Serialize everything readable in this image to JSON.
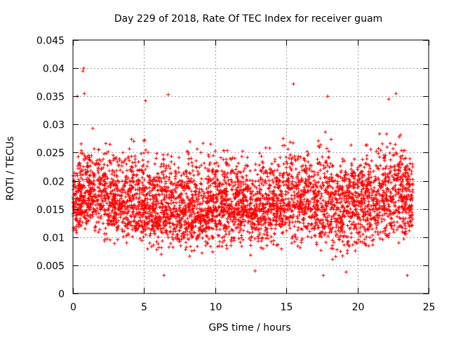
{
  "chart_data": {
    "type": "scatter",
    "title": "Day 229 of 2018, Rate Of TEC Index for receiver guam",
    "xlabel": "GPS time / hours",
    "ylabel": "ROTI / TECUs",
    "xlim": [
      0,
      25
    ],
    "ylim": [
      0,
      0.045
    ],
    "xticks": [
      0,
      5,
      10,
      15,
      20,
      25
    ],
    "yticks": [
      0,
      0.005,
      0.01,
      0.015,
      0.02,
      0.025,
      0.03,
      0.035,
      0.04,
      0.045
    ],
    "xtick_labels": [
      "0",
      "5",
      "10",
      "15",
      "20",
      "25"
    ],
    "ytick_labels": [
      "0",
      "0.005",
      "0.01",
      "0.015",
      "0.02",
      "0.025",
      "0.03",
      "0.035",
      "0.04",
      "0.045"
    ],
    "grid": true,
    "marker": "+",
    "color": "#ff0000",
    "series": [
      {
        "name": "ROTI",
        "x_range": [
          0,
          23.9
        ],
        "envelope": {
          "hours": [
            0,
            1,
            2,
            3,
            4,
            5,
            6,
            7,
            8,
            9,
            10,
            11,
            12,
            13,
            14,
            15,
            16,
            17,
            18,
            19,
            20,
            21,
            22,
            23,
            23.9
          ],
          "low": [
            0.009,
            0.008,
            0.007,
            0.007,
            0.0065,
            0.006,
            0.005,
            0.0055,
            0.006,
            0.006,
            0.0065,
            0.006,
            0.0055,
            0.0055,
            0.006,
            0.007,
            0.007,
            0.006,
            0.004,
            0.004,
            0.0045,
            0.005,
            0.0055,
            0.006,
            0.0075
          ],
          "high": [
            0.026,
            0.031,
            0.03,
            0.029,
            0.029,
            0.031,
            0.027,
            0.027,
            0.029,
            0.028,
            0.028,
            0.029,
            0.027,
            0.028,
            0.028,
            0.031,
            0.03,
            0.028,
            0.031,
            0.029,
            0.028,
            0.029,
            0.032,
            0.031,
            0.027
          ],
          "centre": [
            0.016,
            0.018,
            0.017,
            0.016,
            0.016,
            0.016,
            0.015,
            0.015,
            0.015,
            0.015,
            0.016,
            0.016,
            0.015,
            0.015,
            0.016,
            0.017,
            0.017,
            0.016,
            0.016,
            0.016,
            0.016,
            0.017,
            0.018,
            0.018,
            0.016
          ]
        },
        "outliers": [
          {
            "x": 0.7,
            "y": 0.0395
          },
          {
            "x": 0.75,
            "y": 0.04
          },
          {
            "x": 0.8,
            "y": 0.0355
          },
          {
            "x": 0.3,
            "y": 0.035
          },
          {
            "x": 6.7,
            "y": 0.0353
          },
          {
            "x": 15.5,
            "y": 0.0372
          },
          {
            "x": 17.9,
            "y": 0.035
          },
          {
            "x": 22.7,
            "y": 0.0355
          },
          {
            "x": 22.2,
            "y": 0.0345
          },
          {
            "x": 5.1,
            "y": 0.0342
          },
          {
            "x": 23.5,
            "y": 0.0032
          },
          {
            "x": 17.6,
            "y": 0.0032
          },
          {
            "x": 6.4,
            "y": 0.0032
          },
          {
            "x": 12.8,
            "y": 0.004
          },
          {
            "x": 19.2,
            "y": 0.0038
          }
        ],
        "count": 4200,
        "seed": 229
      }
    ]
  }
}
